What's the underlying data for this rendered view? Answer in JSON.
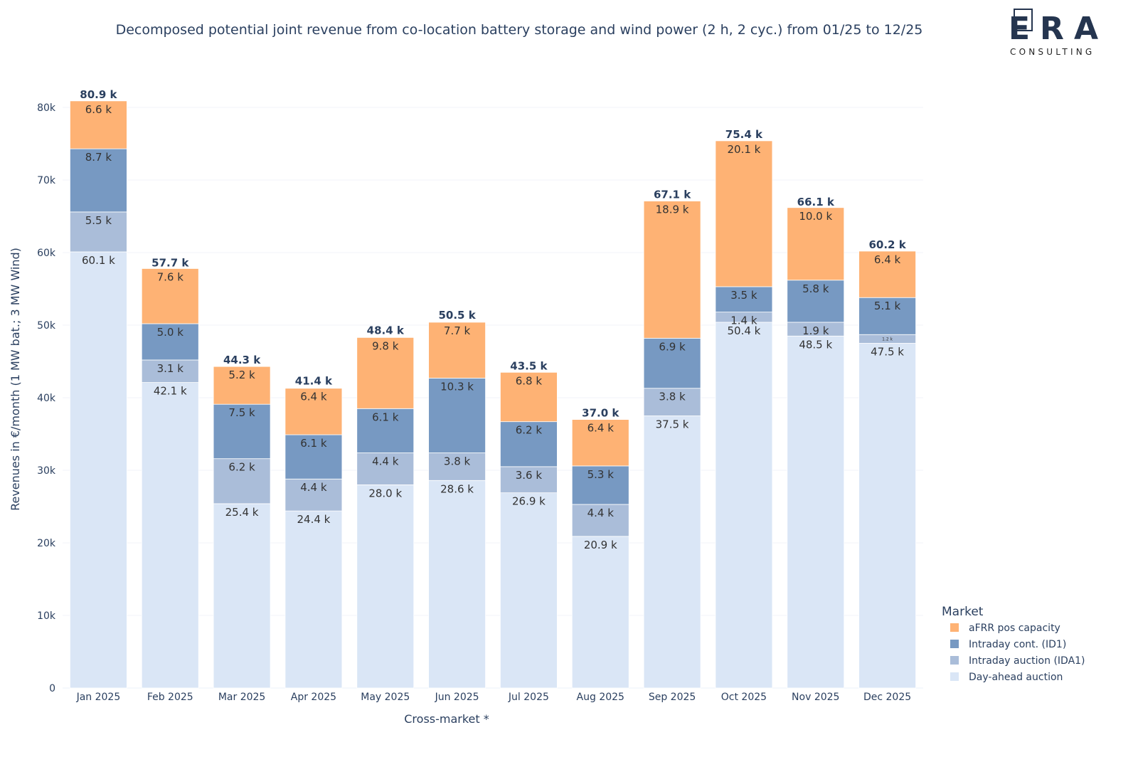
{
  "logo": {
    "text": "ERA",
    "subtitle": "CONSULTING"
  },
  "chart_data": {
    "type": "bar",
    "stacked": true,
    "title": "Decomposed potential joint revenue from co-location battery storage and wind power (2 h, 2 cyc.) from 01/25 to 12/25",
    "xlabel": "Cross-market *",
    "ylabel": "Revenues in €/month (1 MW bat.; 3 MW Wind)",
    "ylim": [
      0,
      80000
    ],
    "yticks": [
      0,
      10000,
      20000,
      30000,
      40000,
      50000,
      60000,
      70000,
      80000
    ],
    "ytick_labels": [
      "0",
      "10k",
      "20k",
      "30k",
      "40k",
      "50k",
      "60k",
      "70k",
      "80k"
    ],
    "grid": true,
    "legend_title": "Market",
    "legend_position": "bottom-right",
    "categories": [
      "Jan 2025",
      "Feb 2025",
      "Mar 2025",
      "Apr 2025",
      "May 2025",
      "Jun 2025",
      "Jul 2025",
      "Aug 2025",
      "Sep 2025",
      "Oct 2025",
      "Nov 2025",
      "Dec 2025"
    ],
    "series": [
      {
        "name": "Day-ahead auction",
        "color": "#dae6f6",
        "values": [
          60.1,
          42.1,
          25.4,
          24.4,
          28.0,
          28.6,
          26.9,
          20.9,
          37.5,
          50.4,
          48.5,
          47.5
        ]
      },
      {
        "name": "Intraday auction (IDA1)",
        "color": "#aabdd9",
        "values": [
          5.5,
          3.1,
          6.2,
          4.4,
          4.4,
          3.8,
          3.6,
          4.4,
          3.8,
          1.4,
          1.9,
          1.2
        ]
      },
      {
        "name": "Intraday cont. (ID1)",
        "color": "#7799c2",
        "values": [
          8.7,
          5.0,
          7.5,
          6.1,
          6.1,
          10.3,
          6.2,
          5.3,
          6.9,
          3.5,
          5.8,
          5.1
        ]
      },
      {
        "name": "aFRR pos capacity",
        "color": "#feb274",
        "values": [
          6.6,
          7.6,
          5.2,
          6.4,
          9.8,
          7.7,
          6.8,
          6.4,
          18.9,
          20.1,
          10.0,
          6.4
        ]
      }
    ],
    "value_unit": "k",
    "totals": [
      80.9,
      57.7,
      44.3,
      41.4,
      48.4,
      50.5,
      43.5,
      37.0,
      67.1,
      75.4,
      66.1,
      60.2
    ]
  }
}
